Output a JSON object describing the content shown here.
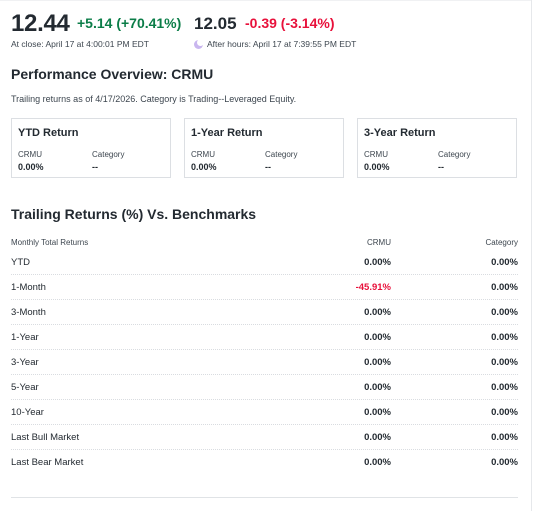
{
  "quote": {
    "price": "12.44",
    "change": "+5.14 (+70.41%)",
    "at_close": "At close: April 17 at 4:00:01 PM EDT",
    "after_hours_price": "12.05",
    "after_hours_change": "-0.39 (-3.14%)",
    "after_hours_time": "After hours: April 17 at 7:39:55 PM EDT",
    "colors": {
      "positive": "#0b7d48",
      "negative": "#e8113b"
    }
  },
  "performance": {
    "title": "Performance Overview: CRMU",
    "note": "Trailing returns as of 4/17/2026. Category is Trading--Leveraged Equity.",
    "cards": [
      {
        "title": "YTD Return",
        "symbol_label": "CRMU",
        "symbol_value": "0.00%",
        "category_label": "Category",
        "category_value": "--"
      },
      {
        "title": "1-Year Return",
        "symbol_label": "CRMU",
        "symbol_value": "0.00%",
        "category_label": "Category",
        "category_value": "--"
      },
      {
        "title": "3-Year Return",
        "symbol_label": "CRMU",
        "symbol_value": "0.00%",
        "category_label": "Category",
        "category_value": "--"
      }
    ]
  },
  "trailing": {
    "title": "Trailing Returns (%) Vs. Benchmarks",
    "headers": [
      "Monthly Total Returns",
      "CRMU",
      "Category"
    ],
    "rows": [
      {
        "label": "YTD",
        "crmu": "0.00%",
        "category": "0.00%"
      },
      {
        "label": "1-Month",
        "crmu": "-45.91%",
        "category": "0.00%"
      },
      {
        "label": "3-Month",
        "crmu": "0.00%",
        "category": "0.00%"
      },
      {
        "label": "1-Year",
        "crmu": "0.00%",
        "category": "0.00%"
      },
      {
        "label": "3-Year",
        "crmu": "0.00%",
        "category": "0.00%"
      },
      {
        "label": "5-Year",
        "crmu": "0.00%",
        "category": "0.00%"
      },
      {
        "label": "10-Year",
        "crmu": "0.00%",
        "category": "0.00%"
      },
      {
        "label": "Last Bull Market",
        "crmu": "0.00%",
        "category": "0.00%"
      },
      {
        "label": "Last Bear Market",
        "crmu": "0.00%",
        "category": "0.00%"
      }
    ]
  }
}
